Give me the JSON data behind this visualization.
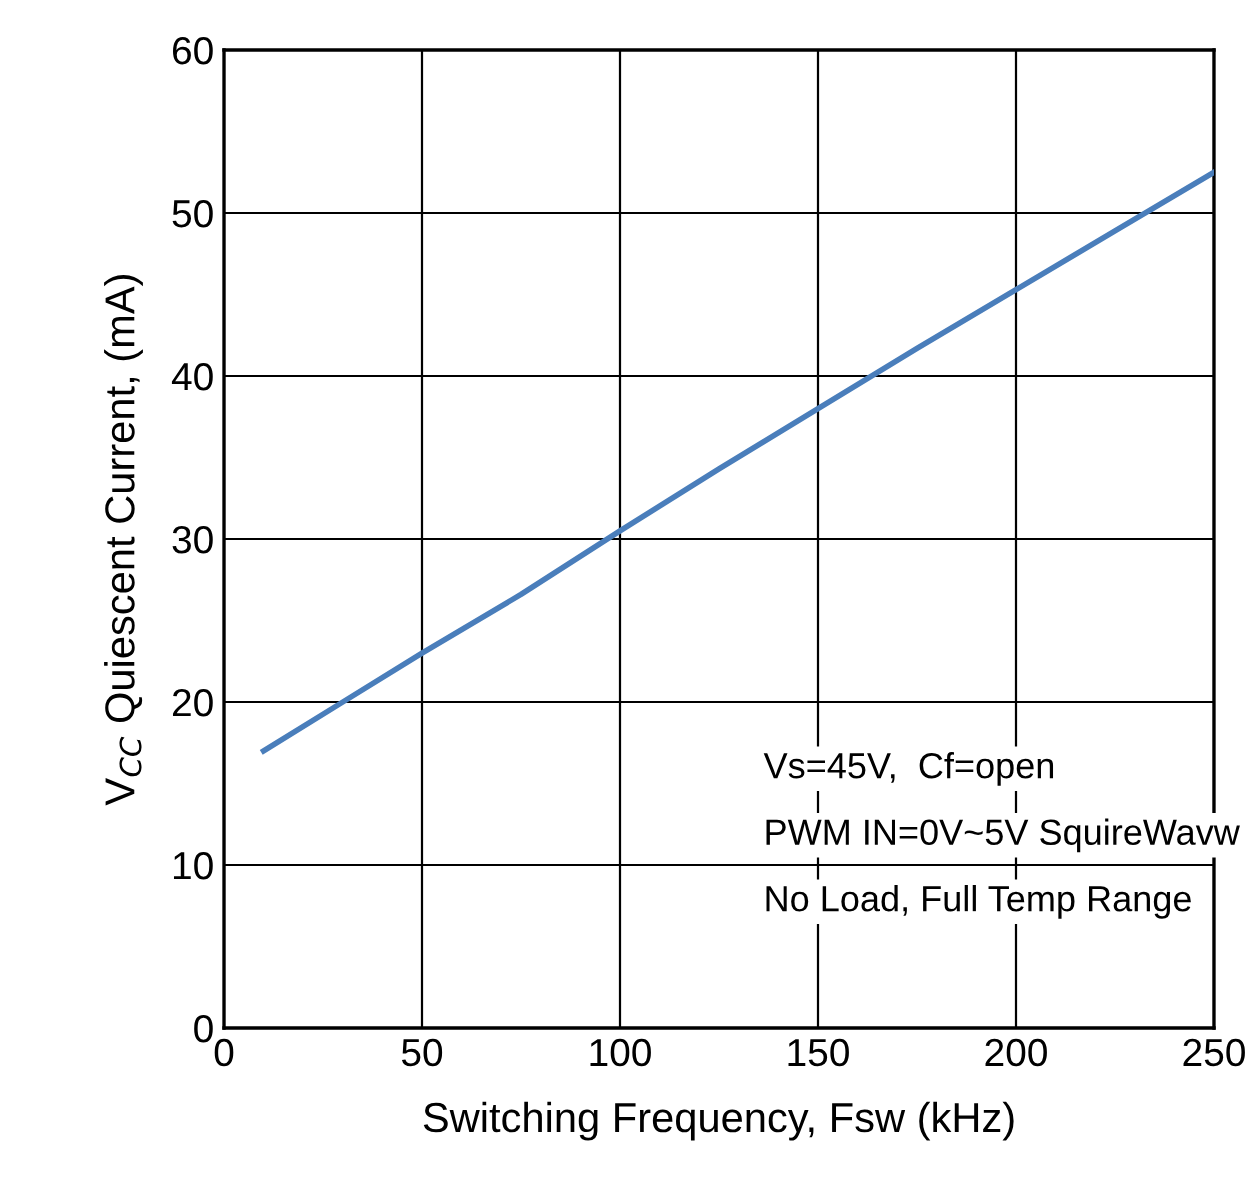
{
  "chart_data": {
    "type": "line",
    "xlabel": "Switching Frequency, Fsw (kHz)",
    "ylabel": "V$_{CC}$ Quiescent Current, (mA)",
    "x": [
      10,
      30,
      50,
      75,
      100,
      125,
      150,
      175,
      200,
      225,
      250
    ],
    "series": [
      {
        "color": "#4a7ebb",
        "values": [
          17.0,
          20.0,
          23.0,
          26.6,
          30.5,
          34.3,
          38.0,
          41.7,
          45.3,
          48.9,
          52.5
        ]
      }
    ],
    "xlim": [
      0,
      250
    ],
    "ylim": [
      0,
      60
    ],
    "xticks": [
      0,
      50,
      100,
      150,
      200,
      250
    ],
    "yticks": [
      0,
      10,
      20,
      30,
      40,
      50,
      60
    ],
    "grid": true,
    "annotations": [
      "Vs=45V,  Cf=open",
      "PWM IN=0V~5V SquireWavw",
      "No Load, Full Temp Range"
    ]
  }
}
